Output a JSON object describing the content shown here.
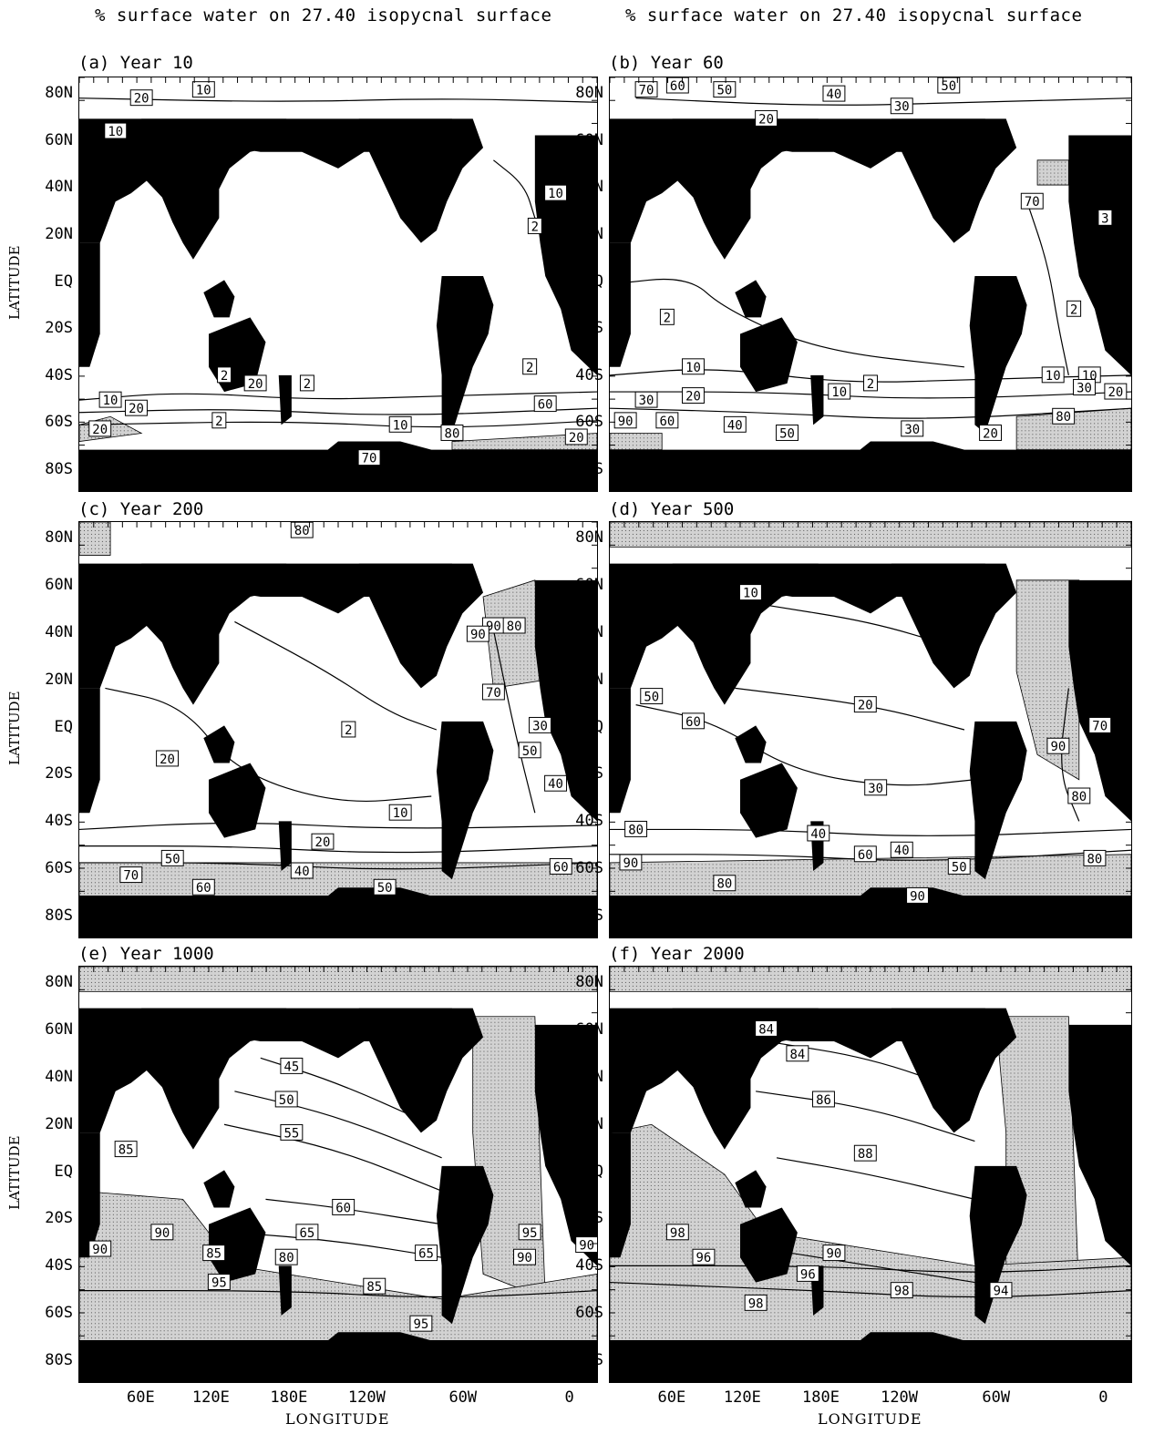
{
  "titles": {
    "left": "% surface water on 27.40 isopycnal surface",
    "right": "% surface water on 27.40 isopycnal surface"
  },
  "axes": {
    "ylabel": "LATITUDE",
    "xlabel": "LONGITUDE",
    "yticks": [
      "80N",
      "60N",
      "40N",
      "20N",
      "EQ",
      "20S",
      "40S",
      "60S",
      "80S"
    ],
    "xticks": [
      "60E",
      "120E",
      "180E",
      "120W",
      "60W",
      "0"
    ]
  },
  "colors": {
    "land": "#000000",
    "saturated": "#d2d2d2",
    "ocean": "#ffffff",
    "contour": "#000000"
  },
  "chart_data": [
    {
      "id": "a",
      "type": "contour-map",
      "title": "(a) Year 10",
      "contour_labels": [
        "20",
        "10",
        "10",
        "10",
        "2",
        "2",
        "2",
        "2",
        "20",
        "10",
        "20",
        "60",
        "2",
        "10",
        "20",
        "80",
        "70",
        "20"
      ]
    },
    {
      "id": "b",
      "type": "contour-map",
      "title": "(b) Year 60",
      "contour_labels": [
        "70",
        "60",
        "50",
        "40",
        "50",
        "30",
        "20",
        "70",
        "3",
        "2",
        "2",
        "10",
        "2",
        "10",
        "20",
        "30",
        "90",
        "60",
        "40",
        "50",
        "30",
        "20",
        "80",
        "10",
        "10",
        "30",
        "20"
      ]
    },
    {
      "id": "c",
      "type": "contour-map",
      "title": "(c) Year 200",
      "contour_labels": [
        "80",
        "90",
        "90",
        "80",
        "70",
        "2",
        "20",
        "30",
        "50",
        "40",
        "10",
        "20",
        "50",
        "40",
        "70",
        "60",
        "50",
        "60"
      ]
    },
    {
      "id": "d",
      "type": "contour-map",
      "title": "(d) Year 500",
      "contour_labels": [
        "10",
        "50",
        "60",
        "20",
        "70",
        "90",
        "30",
        "80",
        "80",
        "40",
        "40",
        "60",
        "50",
        "80",
        "80",
        "90",
        "90"
      ]
    },
    {
      "id": "e",
      "type": "contour-map",
      "title": "(e) Year 1000",
      "contour_labels": [
        "45",
        "50",
        "55",
        "85",
        "60",
        "65",
        "90",
        "90",
        "85",
        "80",
        "65",
        "95",
        "90",
        "90",
        "85",
        "95",
        "95"
      ]
    },
    {
      "id": "f",
      "type": "contour-map",
      "title": "(f) Year 2000",
      "contour_labels": [
        "84",
        "84",
        "86",
        "88",
        "98",
        "96",
        "90",
        "96",
        "94",
        "98",
        "98"
      ]
    }
  ]
}
